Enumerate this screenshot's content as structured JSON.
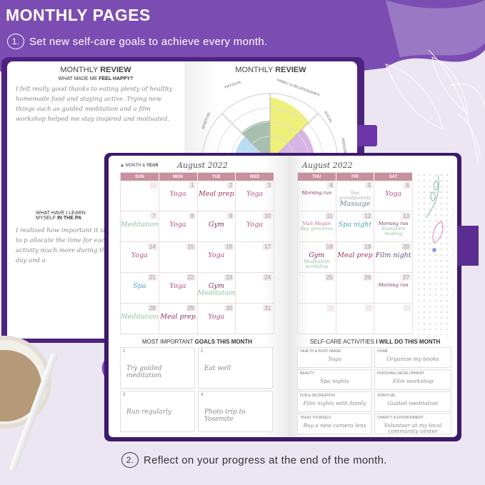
{
  "title": "MONTHLY PAGES",
  "steps": [
    {
      "num": "1.",
      "text": "Set new self-care goals to achieve every month."
    },
    {
      "num": "2.",
      "text": "Reflect on your progress at the end of the month."
    }
  ],
  "colors": {
    "purple": "#7b4db3",
    "lavender": "#ece6f3",
    "calendar_header": "#c88f9d",
    "cover": "#5b2d91"
  },
  "back_left": {
    "title_light": "MONTHLY ",
    "title_bold": "REVIEW",
    "q1_light": "WHAT MADE ME ",
    "q1_bold": "FEEL HAPPY?",
    "a1": "I felt really good thanks to eating plenty of healthy homemade food and staying active. Trying new things such as guided meditation and a film workshop helped me stay inspired and motivated.",
    "q2_line1": "WHAT HAVE I LEARN",
    "q2_light": "MYSELF ",
    "q2_bold": "IN THE PA",
    "a2": "I realized how important it is to p allocate the time for each activity much more during the day and a"
  },
  "back_right": {
    "title_light": "MONTHLY ",
    "title_bold": "REVIEW",
    "wheel_labels": [
      "PHYSICAL",
      "FAMILY & RELATIONSHIPS",
      "SOCIAL",
      "SPIRITUAL",
      "PERSONAL"
    ]
  },
  "calendar": {
    "label_light": "MONTH ",
    "label_amp": "& ",
    "label_bold": "YEAR",
    "month_left": "August 2022",
    "month_right": "August 2022",
    "left_days": [
      "SUN",
      "MON",
      "TUE",
      "WED"
    ],
    "right_days": [
      "THU",
      "FRI",
      "SAT"
    ],
    "left_cells": [
      {
        "d": "",
        "e": []
      },
      {
        "d": "1",
        "e": [
          [
            "Yoga",
            "#b0508a"
          ]
        ]
      },
      {
        "d": "2",
        "e": [
          [
            "Meal prep",
            "#9b2f5f"
          ]
        ]
      },
      {
        "d": "3",
        "e": [
          [
            "Yoga",
            "#b0508a"
          ]
        ]
      },
      {
        "d": "7",
        "e": [
          [
            "Meditation",
            "#8fbf9c"
          ]
        ]
      },
      {
        "d": "8",
        "e": [
          [
            "Yoga",
            "#b0508a"
          ]
        ]
      },
      {
        "d": "9",
        "e": [
          [
            "Gym",
            "#7a2a5c"
          ]
        ]
      },
      {
        "d": "10",
        "e": [
          [
            "Yoga",
            "#b0508a"
          ]
        ]
      },
      {
        "d": "14",
        "e": [
          [
            "Yoga",
            "#b0508a"
          ]
        ]
      },
      {
        "d": "15",
        "e": []
      },
      {
        "d": "16",
        "e": [
          [
            "Yoga",
            "#b0508a"
          ]
        ]
      },
      {
        "d": "17",
        "e": []
      },
      {
        "d": "21",
        "e": [
          [
            "Spa",
            "#4aa3b8"
          ]
        ]
      },
      {
        "d": "22",
        "e": [
          [
            "Yoga",
            "#b0508a"
          ]
        ]
      },
      {
        "d": "23",
        "e": [
          [
            "Gym",
            "#7a2a5c"
          ],
          [
            "Meditation",
            "#8fbf9c"
          ]
        ]
      },
      {
        "d": "24",
        "e": []
      },
      {
        "d": "28",
        "e": [
          [
            "Meditation",
            "#8fbf9c"
          ]
        ]
      },
      {
        "d": "29",
        "e": [
          [
            "Meal prep",
            "#9b2f5f"
          ]
        ]
      },
      {
        "d": "30",
        "e": [
          [
            "Yoga",
            "#b0508a"
          ]
        ]
      },
      {
        "d": "31",
        "e": []
      }
    ],
    "right_cells": [
      {
        "d": "4",
        "e": [
          [
            "Morning run",
            "#7a2a5c"
          ]
        ]
      },
      {
        "d": "5",
        "e": [
          [
            "See grandparents",
            "#aaa"
          ],
          [
            "Massage",
            "#6b7f8f"
          ]
        ]
      },
      {
        "d": "6",
        "e": [
          [
            "Yoga",
            "#b0508a"
          ]
        ]
      },
      {
        "d": "11",
        "e": [
          [
            "Visit Megan",
            "#d0637f"
          ],
          [
            "Buy groceries",
            "#8fbf9c"
          ]
        ]
      },
      {
        "d": "12",
        "e": [
          [
            "Spa night",
            "#4aa3b8"
          ]
        ]
      },
      {
        "d": "13",
        "e": [
          [
            "Morning run",
            "#7a2a5c"
          ],
          [
            "Bookstore reading",
            "#8fbf9c"
          ]
        ]
      },
      {
        "d": "18",
        "e": [
          [
            "Gym",
            "#7a2a5c"
          ],
          [
            "Meditation workshop",
            "#8fbf9c"
          ]
        ]
      },
      {
        "d": "19",
        "e": [
          [
            "Meal prep",
            "#9b2f5f"
          ]
        ]
      },
      {
        "d": "20",
        "e": [
          [
            "Film night",
            "#5a4a8a"
          ]
        ]
      },
      {
        "d": "25",
        "e": []
      },
      {
        "d": "26",
        "e": []
      },
      {
        "d": "27",
        "e": [
          [
            "Morning run",
            "#7a2a5c"
          ]
        ]
      },
      {
        "d": "",
        "e": []
      },
      {
        "d": "",
        "e": []
      },
      {
        "d": "",
        "e": []
      }
    ]
  },
  "goals": {
    "title_light": "MOST IMPORTANT ",
    "title_bold": "GOALS THIS MONTH",
    "items": [
      {
        "n": "1",
        "t": "Try guided meditation"
      },
      {
        "n": "2",
        "t": "Eat well"
      },
      {
        "n": "3",
        "t": "Run regularly"
      },
      {
        "n": "4",
        "t": "Photo trip to Yosemite"
      }
    ]
  },
  "selfcare": {
    "title_light": "SELF-CARE ACTIVITIES ",
    "title_bold": "I WILL DO THIS MONTH",
    "items": [
      {
        "label": "HEALTH & BODY IMAGE",
        "t": "Yoga"
      },
      {
        "label": "HOME",
        "t": "Organize my books"
      },
      {
        "label": "BEAUTY",
        "t": "Spa nights"
      },
      {
        "label": "PERSONAL DEVELOPMENT",
        "t": "Film workshop"
      },
      {
        "label": "FUN & RECREATION",
        "t": "Film nights with family"
      },
      {
        "label": "SPIRITUAL",
        "t": "Guided meditation"
      },
      {
        "label": "TREAT YOURSELF",
        "t": "Buy a new camera lens"
      },
      {
        "label": "CHARITY & ENVIRONMENT",
        "t": "Volunteer at my local community center"
      }
    ]
  }
}
